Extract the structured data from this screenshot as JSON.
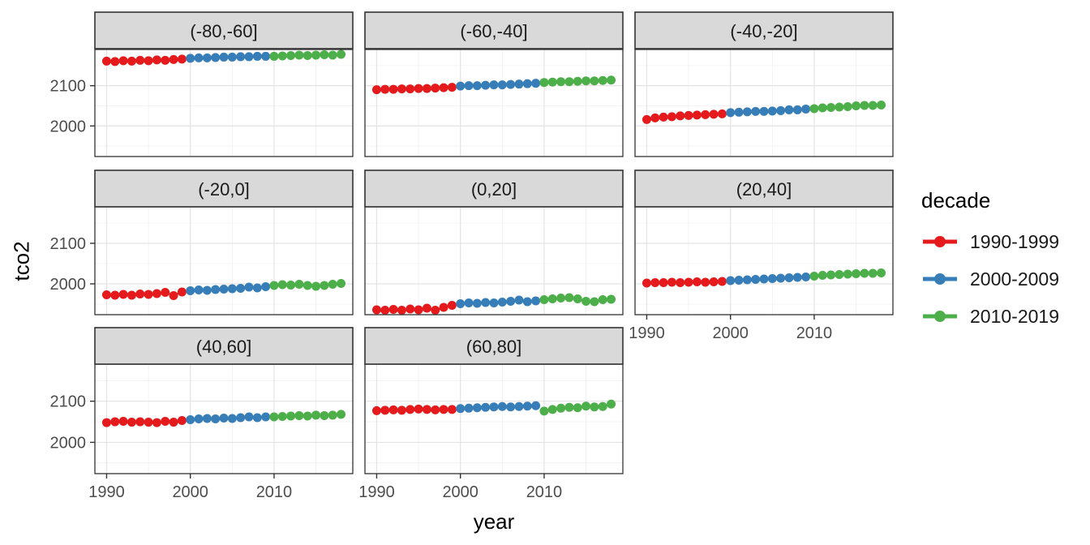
{
  "chart_data": {
    "type": "scatter",
    "title": "",
    "xlabel": "year",
    "ylabel": "tco2",
    "facet_variable": "latitude band",
    "xlim": [
      1988.6,
      2019.4
    ],
    "ylim": [
      1924,
      2190
    ],
    "x_ticks": [
      1990,
      2000,
      2010
    ],
    "x_minor": [
      1995,
      2005,
      2015
    ],
    "y_ticks": [
      2000,
      2100
    ],
    "y_minor": [
      1950,
      2050,
      2150
    ],
    "grid": true,
    "years": [
      1990,
      1991,
      1992,
      1993,
      1994,
      1995,
      1996,
      1997,
      1998,
      1999,
      2000,
      2001,
      2002,
      2003,
      2004,
      2005,
      2006,
      2007,
      2008,
      2009,
      2010,
      2011,
      2012,
      2013,
      2014,
      2015,
      2016,
      2017,
      2018
    ],
    "decades": [
      {
        "label": "1990-1999",
        "color": "#E41A1C",
        "start": 1990,
        "end": 1999
      },
      {
        "label": "2000-2009",
        "color": "#377EB8",
        "start": 2000,
        "end": 2009
      },
      {
        "label": "2010-2019",
        "color": "#4DAF4A",
        "start": 2010,
        "end": 2018
      }
    ],
    "legend": {
      "title": "decade",
      "position": "right",
      "entries": [
        {
          "label": "1990-1999",
          "color": "#E41A1C"
        },
        {
          "label": "2000-2009",
          "color": "#377EB8"
        },
        {
          "label": "2010-2019",
          "color": "#4DAF4A"
        }
      ]
    },
    "facets": [
      {
        "label": "(-80,-60]",
        "values": [
          2161,
          2160,
          2162,
          2161,
          2163,
          2162,
          2164,
          2163,
          2165,
          2166,
          2168,
          2169,
          2169,
          2170,
          2171,
          2171,
          2172,
          2172,
          2173,
          2173,
          2173,
          2174,
          2175,
          2176,
          2175,
          2176,
          2177,
          2176,
          2178
        ]
      },
      {
        "label": "(-60,-40]",
        "values": [
          2090,
          2091,
          2091,
          2092,
          2092,
          2093,
          2093,
          2094,
          2095,
          2096,
          2099,
          2100,
          2100,
          2101,
          2102,
          2102,
          2103,
          2104,
          2105,
          2106,
          2108,
          2109,
          2110,
          2110,
          2111,
          2112,
          2112,
          2113,
          2114
        ]
      },
      {
        "label": "(-40,-20]",
        "values": [
          2016,
          2020,
          2022,
          2023,
          2025,
          2026,
          2027,
          2028,
          2029,
          2030,
          2033,
          2034,
          2035,
          2036,
          2036,
          2037,
          2038,
          2040,
          2040,
          2042,
          2043,
          2045,
          2046,
          2047,
          2048,
          2050,
          2051,
          2051,
          2052
        ]
      },
      {
        "label": "(-20,0]",
        "values": [
          1973,
          1972,
          1974,
          1972,
          1975,
          1974,
          1976,
          1979,
          1971,
          1980,
          1983,
          1985,
          1984,
          1986,
          1987,
          1988,
          1989,
          1992,
          1990,
          1993,
          1996,
          1998,
          1997,
          1999,
          1996,
          1994,
          1996,
          1999,
          2001
        ]
      },
      {
        "label": "(0,20]",
        "values": [
          1936,
          1935,
          1937,
          1935,
          1938,
          1936,
          1940,
          1935,
          1942,
          1947,
          1951,
          1953,
          1952,
          1954,
          1953,
          1955,
          1957,
          1960,
          1956,
          1958,
          1961,
          1963,
          1965,
          1966,
          1963,
          1957,
          1956,
          1961,
          1962
        ]
      },
      {
        "label": "(20,40]",
        "values": [
          2002,
          2003,
          2003,
          2004,
          2003,
          2004,
          2005,
          2004,
          2005,
          2006,
          2008,
          2009,
          2010,
          2011,
          2012,
          2013,
          2014,
          2015,
          2016,
          2017,
          2019,
          2021,
          2022,
          2023,
          2024,
          2025,
          2026,
          2026,
          2027
        ]
      },
      {
        "label": "(40,60]",
        "values": [
          2048,
          2050,
          2051,
          2049,
          2050,
          2049,
          2048,
          2051,
          2049,
          2053,
          2055,
          2057,
          2058,
          2057,
          2059,
          2058,
          2060,
          2062,
          2060,
          2062,
          2062,
          2063,
          2064,
          2065,
          2064,
          2066,
          2065,
          2066,
          2068
        ]
      },
      {
        "label": "(60,80]",
        "values": [
          2077,
          2078,
          2079,
          2078,
          2080,
          2081,
          2080,
          2079,
          2080,
          2080,
          2082,
          2083,
          2084,
          2085,
          2086,
          2087,
          2086,
          2087,
          2088,
          2089,
          2076,
          2080,
          2083,
          2085,
          2084,
          2088,
          2086,
          2087,
          2093
        ]
      }
    ],
    "theme": {
      "strip_fill": "#d9d9d9",
      "strip_text": "#1a1a1a",
      "panel_border": "#333333",
      "grid_major": "#e3e3e3",
      "grid_minor": "#f0f0f0",
      "tick_color": "#333333",
      "tick_text": "#4d4d4d",
      "background": "#ffffff"
    }
  }
}
